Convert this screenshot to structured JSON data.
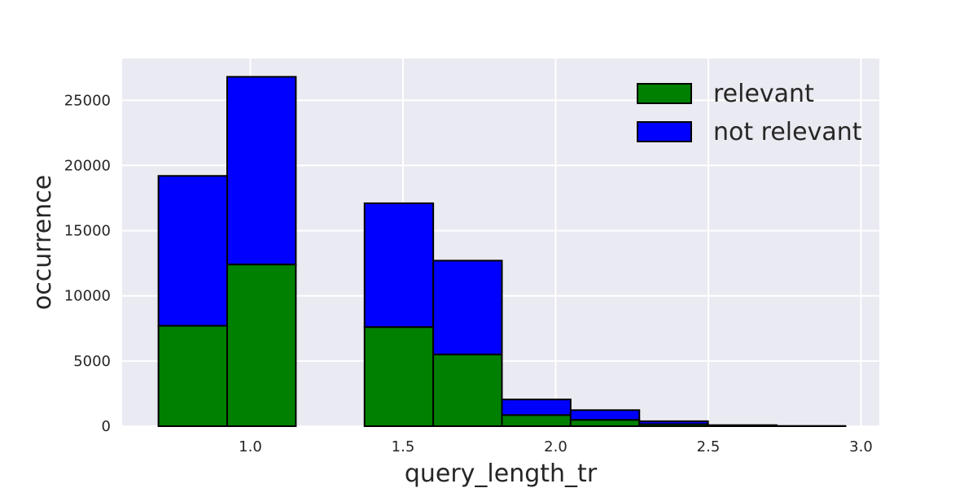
{
  "chart_data": {
    "type": "bar",
    "stacked": true,
    "title": "",
    "xlabel": "query_length_tr",
    "ylabel": "occurrence",
    "xlim": [
      0.58,
      3.06
    ],
    "ylim": [
      0,
      28200
    ],
    "xticks": [
      {
        "value": 1.0,
        "label": "1.0"
      },
      {
        "value": 1.5,
        "label": "1.5"
      },
      {
        "value": 2.0,
        "label": "2.0"
      },
      {
        "value": 2.5,
        "label": "2.5"
      },
      {
        "value": 3.0,
        "label": "3.0"
      }
    ],
    "yticks": [
      {
        "value": 0,
        "label": "0"
      },
      {
        "value": 5000,
        "label": "5000"
      },
      {
        "value": 10000,
        "label": "10000"
      },
      {
        "value": 15000,
        "label": "15000"
      },
      {
        "value": 20000,
        "label": "20000"
      },
      {
        "value": 25000,
        "label": "25000"
      }
    ],
    "bin_edges": [
      0.699,
      0.924,
      1.149,
      1.374,
      1.599,
      1.824,
      2.049,
      2.274,
      2.499,
      2.724,
      2.949
    ],
    "grid": true,
    "legend_position": "top-right",
    "series": [
      {
        "name": "relevant",
        "color": "#008000",
        "values": [
          7700,
          12400,
          0,
          7600,
          5500,
          850,
          480,
          150,
          30,
          5
        ]
      },
      {
        "name": "not relevant",
        "color": "#0000ff",
        "values": [
          11500,
          14400,
          0,
          9500,
          7200,
          1200,
          750,
          230,
          50,
          10
        ]
      }
    ]
  },
  "colors": {
    "plot_background": "#eaeaf2",
    "grid": "#ffffff",
    "edge": "#000000"
  }
}
